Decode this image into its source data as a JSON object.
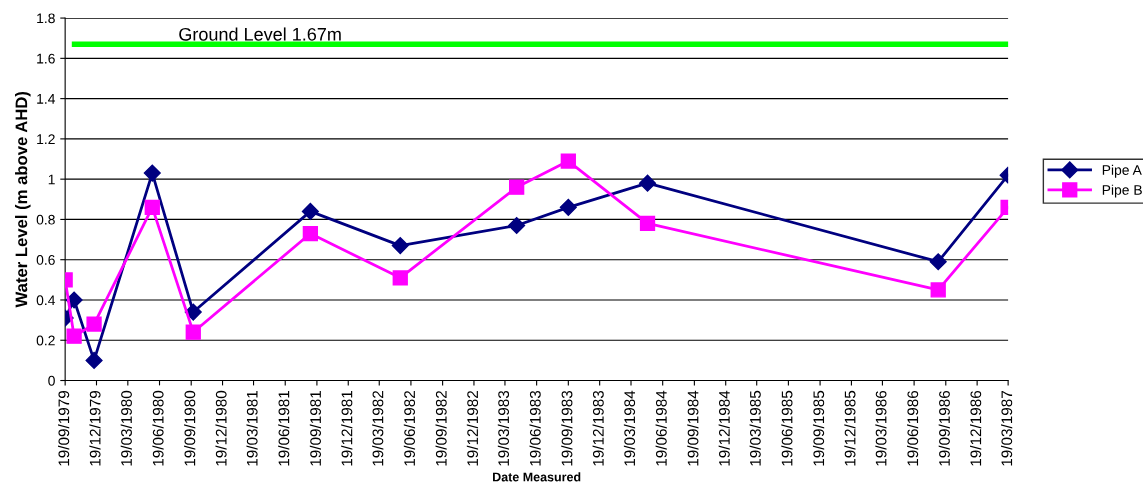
{
  "chart_data": {
    "type": "line",
    "xlabel": "Date Measured",
    "ylabel": "Water Level (m above AHD)",
    "x": [
      "1979-09-19",
      "1979-10-15",
      "1979-12-12",
      "1980-05-29",
      "1980-09-25",
      "1981-08-31",
      "1982-05-19",
      "1983-04-22",
      "1983-09-19",
      "1984-05-06",
      "1986-08-28",
      "1987-03-19"
    ],
    "series": [
      {
        "name": "Pipe A",
        "color": "#000080",
        "marker": "diamond",
        "values": [
          0.31,
          0.4,
          0.1,
          1.03,
          0.34,
          0.84,
          0.67,
          0.77,
          0.86,
          0.98,
          0.59,
          1.02
        ]
      },
      {
        "name": "Pipe B",
        "color": "#ff00ff",
        "marker": "square",
        "values": [
          0.5,
          0.22,
          0.28,
          0.86,
          0.24,
          0.73,
          0.51,
          0.96,
          1.09,
          0.78,
          0.45,
          0.86
        ]
      }
    ],
    "ref_lines": [
      {
        "axis": "y",
        "value": 1.67,
        "label": "Ground Level 1.67m",
        "color": "#00ff00"
      }
    ],
    "xlim": [
      "1979-09-19",
      "1987-03-19"
    ],
    "xticks": [
      {
        "value": "1979-09-19",
        "label": "19/09/1979"
      },
      {
        "value": "1979-12-19",
        "label": "19/12/1979"
      },
      {
        "value": "1980-03-19",
        "label": "19/03/1980"
      },
      {
        "value": "1980-06-19",
        "label": "19/06/1980"
      },
      {
        "value": "1980-09-19",
        "label": "19/09/1980"
      },
      {
        "value": "1980-12-19",
        "label": "19/12/1980"
      },
      {
        "value": "1981-03-19",
        "label": "19/03/1981"
      },
      {
        "value": "1981-06-19",
        "label": "19/06/1981"
      },
      {
        "value": "1981-09-19",
        "label": "19/09/1981"
      },
      {
        "value": "1981-12-19",
        "label": "19/12/1981"
      },
      {
        "value": "1982-03-19",
        "label": "19/03/1982"
      },
      {
        "value": "1982-06-19",
        "label": "19/06/1982"
      },
      {
        "value": "1982-09-19",
        "label": "19/09/1982"
      },
      {
        "value": "1982-12-19",
        "label": "19/12/1982"
      },
      {
        "value": "1983-03-19",
        "label": "19/03/1983"
      },
      {
        "value": "1983-06-19",
        "label": "19/06/1983"
      },
      {
        "value": "1983-09-19",
        "label": "19/09/1983"
      },
      {
        "value": "1983-12-19",
        "label": "19/12/1983"
      },
      {
        "value": "1984-03-19",
        "label": "19/03/1984"
      },
      {
        "value": "1984-06-19",
        "label": "19/06/1984"
      },
      {
        "value": "1984-09-19",
        "label": "19/09/1984"
      },
      {
        "value": "1984-12-19",
        "label": "19/12/1984"
      },
      {
        "value": "1985-03-19",
        "label": "19/03/1985"
      },
      {
        "value": "1985-06-19",
        "label": "19/06/1985"
      },
      {
        "value": "1985-09-19",
        "label": "19/09/1985"
      },
      {
        "value": "1985-12-19",
        "label": "19/12/1985"
      },
      {
        "value": "1986-03-19",
        "label": "19/03/1986"
      },
      {
        "value": "1986-06-19",
        "label": "19/06/1986"
      },
      {
        "value": "1986-09-19",
        "label": "19/09/1986"
      },
      {
        "value": "1986-12-19",
        "label": "19/12/1986"
      },
      {
        "value": "1987-03-19",
        "label": "19/03/1987"
      }
    ],
    "ylim": [
      0,
      1.8
    ],
    "yticks": [
      0,
      0.2,
      0.4,
      0.6,
      0.8,
      1,
      1.2,
      1.4,
      1.6,
      1.8
    ],
    "grid": "y",
    "legend": "right",
    "line_style": "solid"
  }
}
